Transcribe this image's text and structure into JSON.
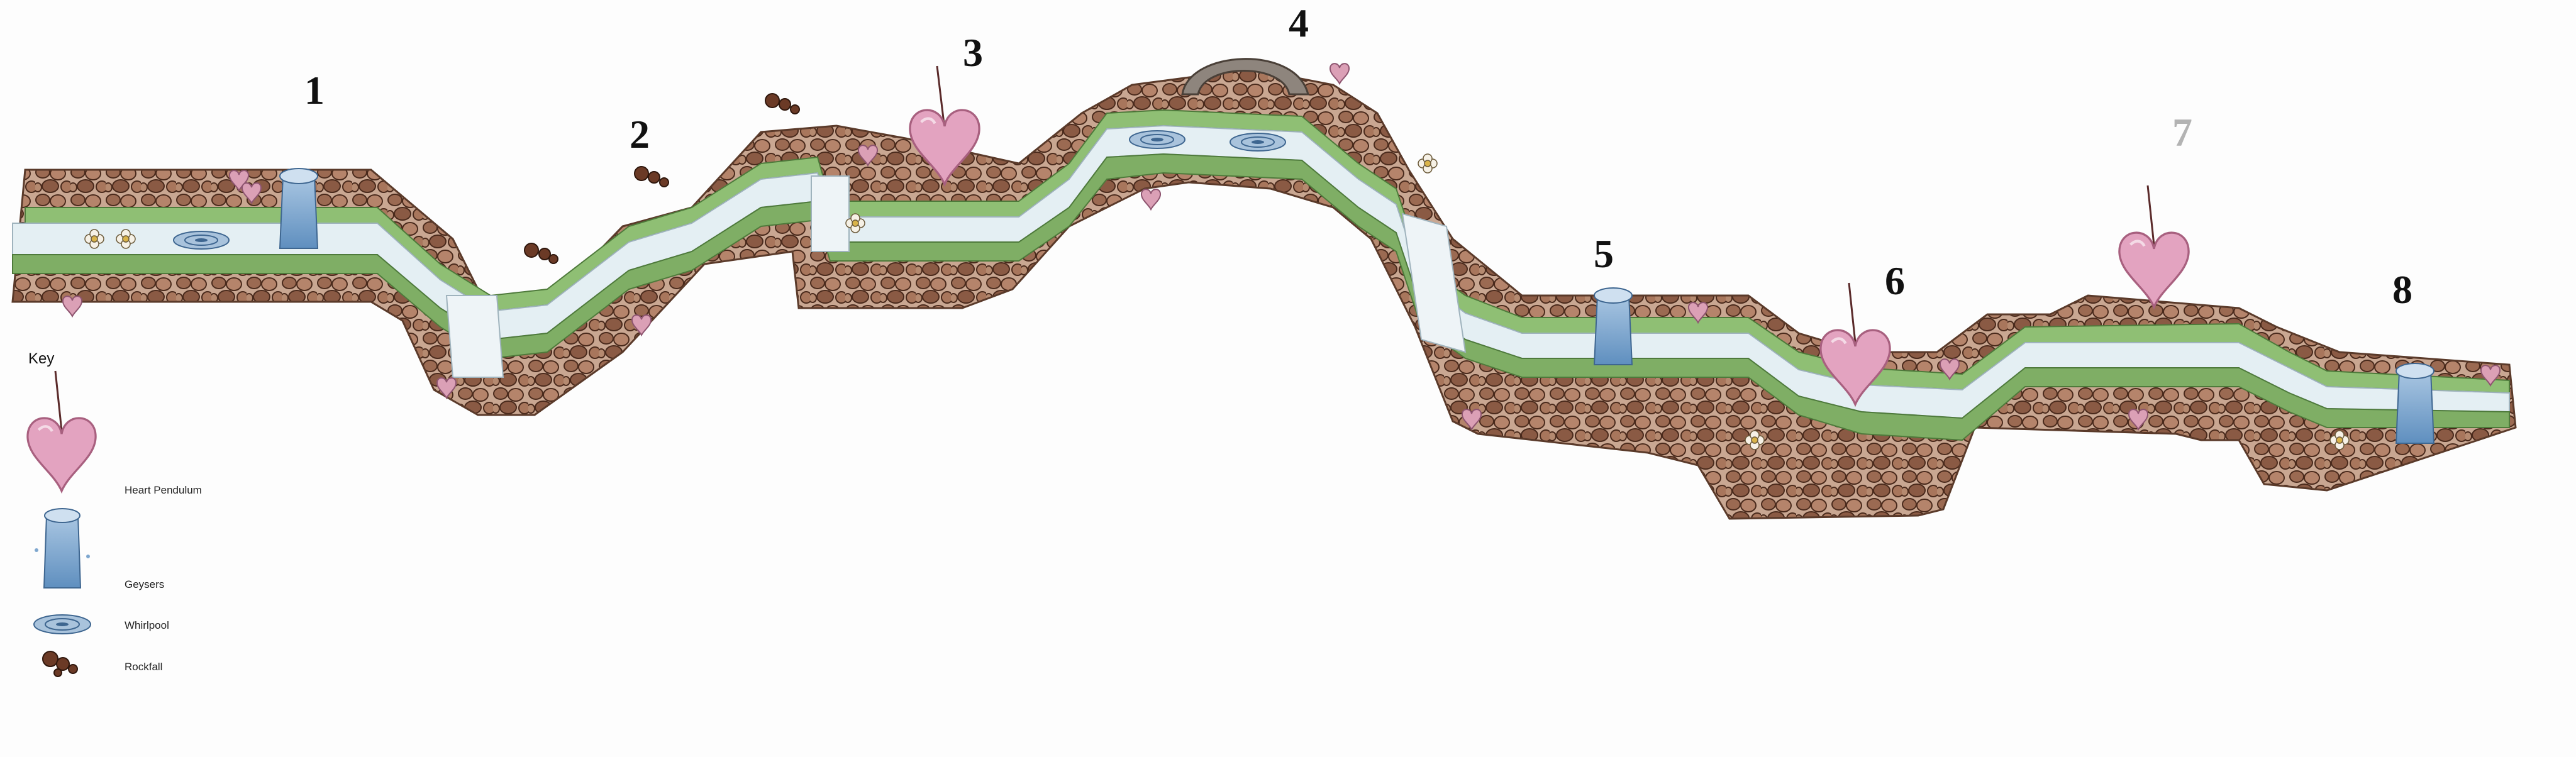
{
  "level_numbers": [
    "1",
    "2",
    "3",
    "4",
    "5",
    "6",
    "7",
    "8"
  ],
  "key": {
    "title": "Key",
    "items": [
      {
        "label": "Heart Pendulum",
        "icon": "heart-pendulum-icon"
      },
      {
        "label": "Geysers",
        "icon": "geyser-icon"
      },
      {
        "label": "Whirlpool",
        "icon": "whirlpool-icon"
      },
      {
        "label": "Rockfall",
        "icon": "rockfall-icon"
      }
    ]
  },
  "colors": {
    "rock": "#8a5a44",
    "rock_dark": "#4a2a1c",
    "grass": "#86b86e",
    "river": "#e3eef2",
    "heart": "#e3a3c0",
    "water": "#7ea7cf",
    "number_faded": "#b3b3b3"
  }
}
